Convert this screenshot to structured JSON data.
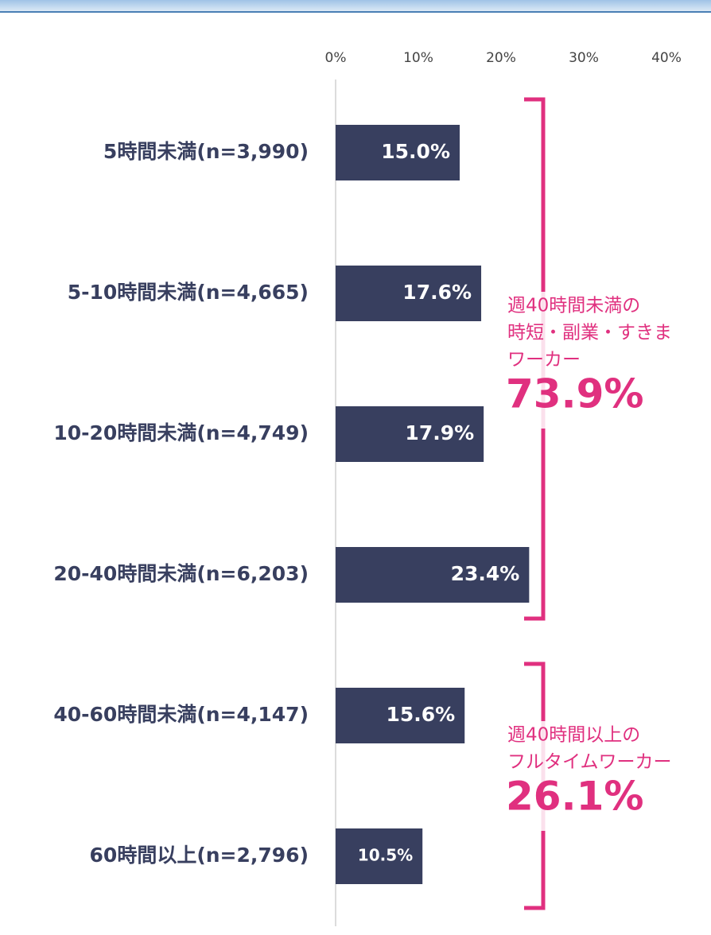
{
  "chart_data": {
    "type": "bar",
    "orientation": "horizontal",
    "categories": [
      "5時間未満(n=3,990)",
      "5-10時間未満(n=4,665)",
      "10-20時間未満(n=4,749)",
      "20-40時間未満(n=6,203)",
      "40-60時間未満(n=4,147)",
      "60時間以上(n=2,796)"
    ],
    "values": [
      15.0,
      17.6,
      17.9,
      23.4,
      15.6,
      10.5
    ],
    "value_labels": [
      "15.0%",
      "17.6%",
      "17.9%",
      "23.4%",
      "15.6%",
      "10.5%"
    ],
    "color": "#383f5f",
    "xlim": [
      0,
      45
    ],
    "xticks": [
      {
        "value": 0,
        "label": "0%"
      },
      {
        "value": 10,
        "label": "10%"
      },
      {
        "value": 20,
        "label": "20%"
      },
      {
        "value": 30,
        "label": "30%"
      },
      {
        "value": 40,
        "label": "40%"
      }
    ],
    "annotations": [
      {
        "lines": [
          "週40時間未満の",
          "時短・副業・すきま",
          "ワーカー"
        ],
        "total": 73.9,
        "total_label": "73.9%"
      },
      {
        "lines": [
          "週40時間以上の",
          "フルタイムワーカー"
        ],
        "total": 26.1,
        "total_label": "26.1%"
      }
    ]
  }
}
